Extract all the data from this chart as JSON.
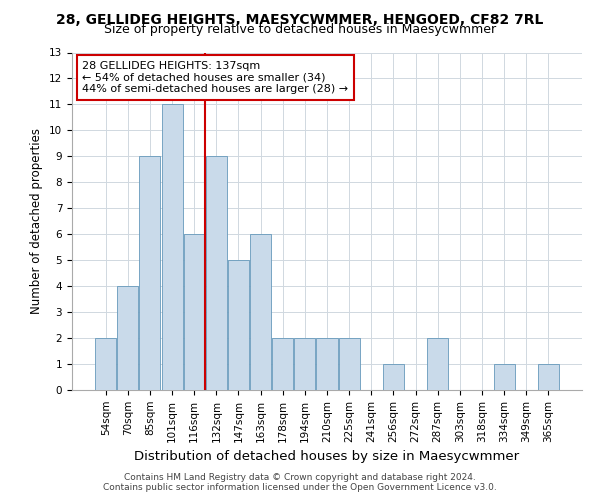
{
  "title": "28, GELLIDEG HEIGHTS, MAESYCWMMER, HENGOED, CF82 7RL",
  "subtitle": "Size of property relative to detached houses in Maesycwmmer",
  "xlabel": "Distribution of detached houses by size in Maesycwmmer",
  "ylabel": "Number of detached properties",
  "bar_labels": [
    "54sqm",
    "70sqm",
    "85sqm",
    "101sqm",
    "116sqm",
    "132sqm",
    "147sqm",
    "163sqm",
    "178sqm",
    "194sqm",
    "210sqm",
    "225sqm",
    "241sqm",
    "256sqm",
    "272sqm",
    "287sqm",
    "303sqm",
    "318sqm",
    "334sqm",
    "349sqm",
    "365sqm"
  ],
  "bar_heights": [
    2,
    4,
    9,
    11,
    6,
    9,
    5,
    6,
    2,
    2,
    2,
    2,
    0,
    1,
    0,
    2,
    0,
    0,
    1,
    0,
    1
  ],
  "bar_color": "#c9daea",
  "bar_edge_color": "#6699bb",
  "annotation_text": "28 GELLIDEG HEIGHTS: 137sqm\n← 54% of detached houses are smaller (34)\n44% of semi-detached houses are larger (28) →",
  "annotation_box_color": "#ffffff",
  "annotation_box_edge": "#cc0000",
  "vline_color": "#cc0000",
  "vline_index": 5,
  "ylim": [
    0,
    13
  ],
  "yticks": [
    0,
    1,
    2,
    3,
    4,
    5,
    6,
    7,
    8,
    9,
    10,
    11,
    12,
    13
  ],
  "grid_color": "#d0d8e0",
  "background_color": "#ffffff",
  "title_fontsize": 10,
  "subtitle_fontsize": 9,
  "ylabel_fontsize": 8.5,
  "xlabel_fontsize": 9.5,
  "tick_fontsize": 7.5,
  "annot_fontsize": 8,
  "footer": "Contains HM Land Registry data © Crown copyright and database right 2024.\nContains public sector information licensed under the Open Government Licence v3.0.",
  "footer_fontsize": 6.5
}
